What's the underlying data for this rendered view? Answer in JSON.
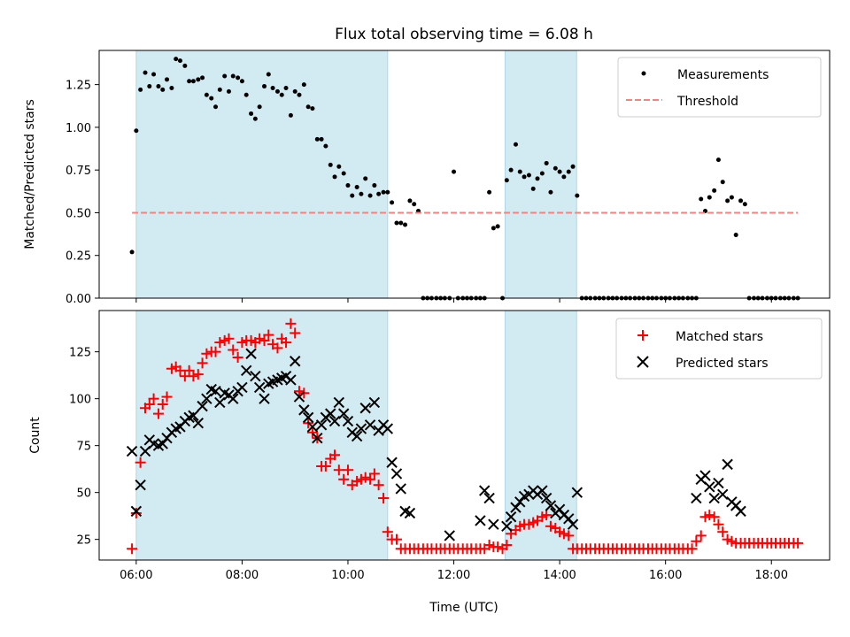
{
  "chart_data": [
    {
      "type": "scatter",
      "title": "Flux total observing time = 6.08 h",
      "xlabel": "",
      "ylabel": "Matched/Predicted stars",
      "xlim": [
        5.3,
        19.1
      ],
      "ylim": [
        0,
        1.45
      ],
      "yticks": [
        0.0,
        0.25,
        0.5,
        0.75,
        1.0,
        1.25
      ],
      "ytick_labels": [
        "0.00",
        "0.25",
        "0.50",
        "0.75",
        "1.00",
        "1.25"
      ],
      "shaded_intervals": [
        [
          6.0,
          10.75
        ],
        [
          12.97,
          14.32
        ]
      ],
      "shade_color": "#add8e6",
      "legend_position": "upper right",
      "series": [
        {
          "name": "Measurements",
          "marker": "dot",
          "color": "#000000",
          "x": [
            5.92,
            6.0,
            6.08,
            6.17,
            6.25,
            6.33,
            6.42,
            6.5,
            6.58,
            6.67,
            6.75,
            6.83,
            6.92,
            7.0,
            7.08,
            7.17,
            7.25,
            7.33,
            7.42,
            7.5,
            7.58,
            7.67,
            7.75,
            7.83,
            7.92,
            8.0,
            8.08,
            8.17,
            8.25,
            8.33,
            8.42,
            8.5,
            8.58,
            8.67,
            8.75,
            8.83,
            8.92,
            9.0,
            9.08,
            9.17,
            9.25,
            9.33,
            9.42,
            9.5,
            9.58,
            9.67,
            9.75,
            9.83,
            9.92,
            10.0,
            10.08,
            10.17,
            10.25,
            10.33,
            10.42,
            10.5,
            10.58,
            10.67,
            10.75,
            10.83,
            10.92,
            11.0,
            11.08,
            11.17,
            11.25,
            11.33,
            11.42,
            11.5,
            11.58,
            11.67,
            11.75,
            11.83,
            11.92,
            12.0,
            12.08,
            12.17,
            12.25,
            12.33,
            12.42,
            12.5,
            12.58,
            12.67,
            12.75,
            12.83,
            12.92,
            13.0,
            13.08,
            13.17,
            13.25,
            13.33,
            13.42,
            13.5,
            13.58,
            13.67,
            13.75,
            13.83,
            13.92,
            14.0,
            14.08,
            14.17,
            14.25,
            14.33,
            14.42,
            14.5,
            14.58,
            14.67,
            14.75,
            14.83,
            14.92,
            15.0,
            15.08,
            15.17,
            15.25,
            15.33,
            15.42,
            15.5,
            15.58,
            15.67,
            15.75,
            15.83,
            15.92,
            16.0,
            16.08,
            16.17,
            16.25,
            16.33,
            16.42,
            16.5,
            16.58,
            16.67,
            16.75,
            16.83,
            16.92,
            17.0,
            17.08,
            17.17,
            17.25,
            17.33,
            17.42,
            17.5,
            17.58,
            17.67,
            17.75,
            17.83,
            17.92,
            18.0,
            18.08,
            18.17,
            18.25,
            18.33,
            18.42,
            18.5
          ],
          "y": [
            0.27,
            0.98,
            1.22,
            1.32,
            1.24,
            1.31,
            1.24,
            1.22,
            1.28,
            1.23,
            1.4,
            1.39,
            1.36,
            1.27,
            1.27,
            1.28,
            1.29,
            1.19,
            1.17,
            1.12,
            1.22,
            1.3,
            1.21,
            1.3,
            1.29,
            1.27,
            1.19,
            1.08,
            1.05,
            1.12,
            1.24,
            1.31,
            1.23,
            1.21,
            1.19,
            1.23,
            1.07,
            1.21,
            1.19,
            1.25,
            1.12,
            1.11,
            0.93,
            0.93,
            0.89,
            0.78,
            0.71,
            0.77,
            0.73,
            0.66,
            0.6,
            0.65,
            0.61,
            0.7,
            0.6,
            0.66,
            0.61,
            0.62,
            0.62,
            0.56,
            0.44,
            0.44,
            0.43,
            0.57,
            0.55,
            0.51,
            0,
            0,
            0,
            0,
            0,
            0,
            0,
            0.74,
            0,
            0,
            0,
            0,
            0,
            0,
            0,
            0.62,
            0.41,
            0.42,
            0,
            0.69,
            0.75,
            0.9,
            0.74,
            0.71,
            0.72,
            0.64,
            0.7,
            0.73,
            0.79,
            0.62,
            0.76,
            0.74,
            0.71,
            0.74,
            0.77,
            0.6,
            0,
            0,
            0,
            0,
            0,
            0,
            0,
            0,
            0,
            0,
            0,
            0,
            0,
            0,
            0,
            0,
            0,
            0,
            0,
            0,
            0,
            0,
            0,
            0,
            0,
            0,
            0,
            0.58,
            0.51,
            0.59,
            0.63,
            0.81,
            0.68,
            0.57,
            0.59,
            0.37,
            0.57,
            0.55,
            0,
            0,
            0,
            0,
            0,
            0,
            0,
            0,
            0,
            0,
            0,
            0
          ]
        },
        {
          "name": "Threshold",
          "style": "dashed",
          "color": "#ff7f7f",
          "x": [
            5.92,
            18.5
          ],
          "y": [
            0.5,
            0.5
          ]
        }
      ]
    },
    {
      "type": "scatter",
      "title": "",
      "xlabel": "Time (UTC)",
      "ylabel": "Count",
      "xlim": [
        5.3,
        19.1
      ],
      "ylim": [
        14,
        147
      ],
      "yticks": [
        25,
        50,
        75,
        100,
        125
      ],
      "ytick_labels": [
        "25",
        "50",
        "75",
        "100",
        "125"
      ],
      "xticks": [
        6,
        8,
        10,
        12,
        14,
        16,
        18
      ],
      "xtick_labels": [
        "06:00",
        "08:00",
        "10:00",
        "12:00",
        "14:00",
        "16:00",
        "18:00"
      ],
      "shaded_intervals": [
        [
          6.0,
          10.75
        ],
        [
          12.97,
          14.32
        ]
      ],
      "shade_color": "#add8e6",
      "legend_position": "upper right",
      "series": [
        {
          "name": "Matched stars",
          "marker": "plus",
          "color": "#ff0000",
          "x": [
            5.92,
            6.0,
            6.08,
            6.17,
            6.25,
            6.33,
            6.42,
            6.5,
            6.58,
            6.67,
            6.75,
            6.83,
            6.92,
            7.0,
            7.08,
            7.17,
            7.25,
            7.33,
            7.42,
            7.5,
            7.58,
            7.67,
            7.75,
            7.83,
            7.92,
            8.0,
            8.08,
            8.17,
            8.25,
            8.33,
            8.42,
            8.5,
            8.58,
            8.67,
            8.75,
            8.83,
            8.92,
            9.0,
            9.08,
            9.17,
            9.25,
            9.33,
            9.42,
            9.5,
            9.58,
            9.67,
            9.75,
            9.83,
            9.92,
            10.0,
            10.08,
            10.17,
            10.25,
            10.33,
            10.42,
            10.5,
            10.58,
            10.67,
            10.75,
            10.83,
            10.92,
            11.0,
            11.08,
            11.17,
            11.25,
            11.33,
            11.42,
            11.5,
            11.58,
            11.67,
            11.75,
            11.83,
            11.92,
            12.0,
            12.08,
            12.17,
            12.25,
            12.33,
            12.42,
            12.5,
            12.58,
            12.67,
            12.75,
            12.83,
            12.92,
            13.0,
            13.08,
            13.17,
            13.25,
            13.33,
            13.42,
            13.5,
            13.58,
            13.67,
            13.75,
            13.83,
            13.92,
            14.0,
            14.08,
            14.17,
            14.25,
            14.33,
            14.42,
            14.5,
            14.58,
            14.67,
            14.75,
            14.83,
            14.92,
            15.0,
            15.08,
            15.17,
            15.25,
            15.33,
            15.42,
            15.5,
            15.58,
            15.67,
            15.75,
            15.83,
            15.92,
            16.0,
            16.08,
            16.17,
            16.25,
            16.33,
            16.42,
            16.5,
            16.58,
            16.67,
            16.75,
            16.83,
            16.92,
            17.0,
            17.08,
            17.17,
            17.25,
            17.33,
            17.42,
            17.5,
            17.58,
            17.67,
            17.75,
            17.83,
            17.92,
            18.0,
            18.08,
            18.17,
            18.25,
            18.33,
            18.42,
            18.5
          ],
          "y": [
            20,
            39,
            66,
            95,
            97,
            100,
            92,
            97,
            101,
            116,
            117,
            115,
            112,
            115,
            112,
            113,
            119,
            124,
            125,
            125,
            130,
            131,
            132,
            126,
            122,
            130,
            131,
            131,
            130,
            132,
            131,
            134,
            129,
            127,
            132,
            130,
            140,
            135,
            104,
            103,
            87,
            82,
            79,
            64,
            64,
            68,
            70,
            62,
            57,
            62,
            54,
            56,
            57,
            58,
            57,
            60,
            54,
            47,
            29,
            25,
            25,
            20,
            20,
            20,
            20,
            20,
            20,
            20,
            20,
            20,
            20,
            20,
            20,
            20,
            20,
            20,
            20,
            20,
            20,
            20,
            20,
            22,
            21,
            21,
            20,
            22,
            28,
            30,
            32,
            33,
            33,
            34,
            35,
            37,
            38,
            32,
            31,
            29,
            28,
            27,
            20,
            20,
            20,
            20,
            20,
            20,
            20,
            20,
            20,
            20,
            20,
            20,
            20,
            20,
            20,
            20,
            20,
            20,
            20,
            20,
            20,
            20,
            20,
            20,
            20,
            20,
            20,
            20,
            24,
            27,
            37,
            38,
            37,
            33,
            29,
            25,
            24,
            23,
            23,
            23,
            23,
            23,
            23,
            23,
            23,
            23,
            23,
            23,
            23,
            23,
            23,
            23
          ]
        },
        {
          "name": "Predicted stars",
          "marker": "x",
          "color": "#000000",
          "x": [
            5.92,
            6.0,
            6.08,
            6.17,
            6.25,
            6.33,
            6.42,
            6.5,
            6.58,
            6.67,
            6.75,
            6.83,
            6.92,
            7.0,
            7.08,
            7.17,
            7.25,
            7.33,
            7.42,
            7.5,
            7.58,
            7.67,
            7.75,
            7.83,
            7.92,
            8.0,
            8.08,
            8.17,
            8.25,
            8.33,
            8.42,
            8.5,
            8.58,
            8.67,
            8.75,
            8.83,
            8.92,
            9.0,
            9.08,
            9.17,
            9.25,
            9.33,
            9.42,
            9.5,
            9.58,
            9.67,
            9.75,
            9.83,
            9.92,
            10.0,
            10.08,
            10.17,
            10.25,
            10.33,
            10.42,
            10.5,
            10.58,
            10.67,
            10.75,
            10.83,
            10.92,
            11.0,
            11.08,
            11.17,
            11.92,
            12.5,
            12.58,
            12.67,
            12.75,
            13.0,
            13.08,
            13.17,
            13.25,
            13.33,
            13.42,
            13.5,
            13.58,
            13.67,
            13.75,
            13.83,
            13.92,
            14.0,
            14.08,
            14.17,
            14.25,
            14.33,
            16.58,
            16.67,
            16.75,
            16.83,
            16.92,
            17.0,
            17.08,
            17.17,
            17.25,
            17.33,
            17.42
          ],
          "y": [
            72,
            40,
            54,
            72,
            78,
            76,
            75,
            76,
            79,
            82,
            84,
            85,
            88,
            90,
            91,
            87,
            96,
            100,
            105,
            104,
            98,
            103,
            102,
            100,
            104,
            106,
            115,
            124,
            112,
            106,
            100,
            108,
            109,
            110,
            111,
            112,
            110,
            120,
            101,
            94,
            90,
            85,
            79,
            86,
            90,
            92,
            88,
            98,
            92,
            88,
            82,
            80,
            84,
            95,
            86,
            98,
            83,
            86,
            84,
            66,
            60,
            52,
            40,
            39,
            27,
            35,
            51,
            47,
            33,
            32,
            37,
            42,
            45,
            48,
            49,
            51,
            49,
            51,
            47,
            43,
            39,
            41,
            38,
            36,
            33,
            50,
            47,
            57,
            59,
            53,
            47,
            55,
            49,
            65,
            45,
            43,
            40
          ]
        }
      ]
    }
  ]
}
